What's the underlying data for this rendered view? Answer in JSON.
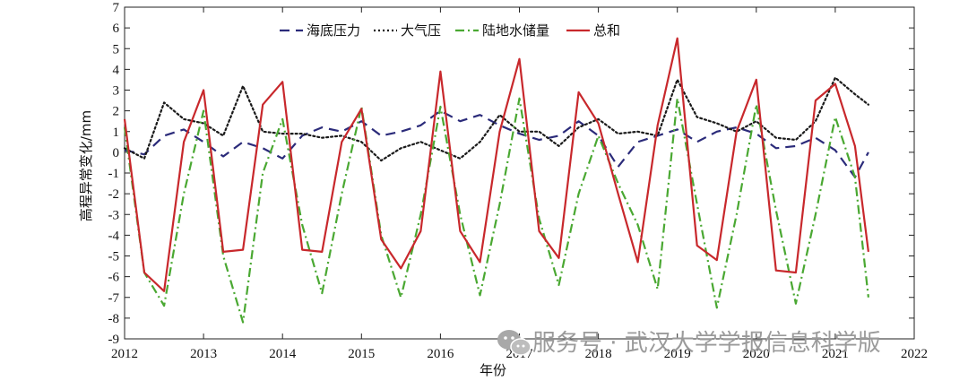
{
  "chart_data": {
    "type": "line",
    "title": "",
    "xlabel": "年份",
    "ylabel": "高程异常变化/mm",
    "xlim": [
      2012,
      2022
    ],
    "ylim": [
      -9,
      7
    ],
    "xticks": [
      "2012",
      "2013",
      "2014",
      "2015",
      "2016",
      "2017",
      "2018",
      "2019",
      "2020",
      "2021",
      "2022"
    ],
    "yticks": [
      "-9",
      "-8",
      "-7",
      "-6",
      "-5",
      "-4",
      "-3",
      "-2",
      "-1",
      "0",
      "1",
      "2",
      "3",
      "4",
      "5",
      "6",
      "7"
    ],
    "legend_position": "top-center",
    "series": [
      {
        "name": "海底压力",
        "color": "#2b2b7a",
        "style": "dashed",
        "x": [
          2012.0,
          2012.25,
          2012.5,
          2012.75,
          2013.0,
          2013.25,
          2013.5,
          2013.75,
          2014.0,
          2014.25,
          2014.5,
          2014.75,
          2015.0,
          2015.25,
          2015.5,
          2015.75,
          2016.0,
          2016.25,
          2016.5,
          2016.75,
          2017.0,
          2017.25,
          2017.5,
          2017.75,
          2018.0,
          2018.25,
          2018.5,
          2018.75,
          2019.0,
          2019.25,
          2019.5,
          2019.75,
          2020.0,
          2020.25,
          2020.5,
          2020.75,
          2021.0,
          2021.25,
          2021.42
        ],
        "values": [
          0.1,
          -0.1,
          0.8,
          1.1,
          0.5,
          -0.2,
          0.5,
          0.2,
          -0.3,
          0.8,
          1.2,
          1.0,
          1.5,
          0.8,
          1.0,
          1.3,
          2.0,
          1.5,
          1.8,
          1.3,
          0.9,
          0.6,
          0.8,
          1.5,
          0.8,
          -0.7,
          0.5,
          0.8,
          1.1,
          0.5,
          1.0,
          1.2,
          0.9,
          0.2,
          0.3,
          0.7,
          0.1,
          -1.2,
          0.0
        ]
      },
      {
        "name": "大气压",
        "color": "#1a1a1a",
        "style": "dotted",
        "x": [
          2012.0,
          2012.25,
          2012.5,
          2012.75,
          2013.0,
          2013.25,
          2013.5,
          2013.75,
          2014.0,
          2014.25,
          2014.5,
          2014.75,
          2015.0,
          2015.25,
          2015.5,
          2015.75,
          2016.0,
          2016.25,
          2016.5,
          2016.75,
          2017.0,
          2017.25,
          2017.5,
          2017.75,
          2018.0,
          2018.25,
          2018.5,
          2018.75,
          2019.0,
          2019.25,
          2019.5,
          2019.75,
          2020.0,
          2020.25,
          2020.5,
          2020.75,
          2021.0,
          2021.25,
          2021.42
        ],
        "values": [
          0.2,
          -0.3,
          2.4,
          1.6,
          1.4,
          0.8,
          3.2,
          1.0,
          0.9,
          0.9,
          0.7,
          0.8,
          0.5,
          -0.4,
          0.2,
          0.5,
          0.1,
          -0.3,
          0.5,
          1.8,
          1.0,
          1.0,
          0.3,
          1.2,
          1.6,
          0.9,
          1.0,
          0.8,
          3.5,
          1.7,
          1.4,
          1.0,
          1.5,
          0.7,
          0.6,
          1.5,
          3.6,
          2.8,
          2.3
        ]
      },
      {
        "name": "陆地水储量",
        "color": "#4aa832",
        "style": "dashdot",
        "x": [
          2012.0,
          2012.25,
          2012.5,
          2012.75,
          2013.0,
          2013.25,
          2013.5,
          2013.75,
          2014.0,
          2014.25,
          2014.5,
          2014.75,
          2015.0,
          2015.25,
          2015.5,
          2015.75,
          2016.0,
          2016.25,
          2016.5,
          2016.75,
          2017.0,
          2017.25,
          2017.5,
          2017.75,
          2018.0,
          2018.25,
          2018.5,
          2018.75,
          2019.0,
          2019.25,
          2019.5,
          2019.75,
          2020.0,
          2020.25,
          2020.5,
          2020.75,
          2021.0,
          2021.25,
          2021.42
        ],
        "values": [
          1.2,
          -5.8,
          -7.4,
          -2.0,
          2.0,
          -5.0,
          -8.2,
          -1.0,
          1.6,
          -3.5,
          -6.8,
          -2.0,
          2.2,
          -4.0,
          -7.0,
          -3.0,
          2.2,
          -3.0,
          -6.9,
          -2.5,
          2.6,
          -3.2,
          -6.4,
          -2.0,
          0.8,
          -1.5,
          -3.5,
          -6.6,
          2.6,
          -2.5,
          -7.5,
          -3.0,
          2.3,
          -2.8,
          -7.3,
          -3.0,
          1.7,
          -1.2,
          -7.0
        ]
      },
      {
        "name": "总和",
        "color": "#c8282c",
        "style": "solid",
        "x": [
          2012.0,
          2012.25,
          2012.5,
          2012.75,
          2013.0,
          2013.25,
          2013.5,
          2013.75,
          2014.0,
          2014.25,
          2014.5,
          2014.75,
          2015.0,
          2015.25,
          2015.5,
          2015.75,
          2016.0,
          2016.25,
          2016.5,
          2016.75,
          2017.0,
          2017.25,
          2017.5,
          2017.75,
          2018.0,
          2018.25,
          2018.5,
          2018.75,
          2019.0,
          2019.25,
          2019.5,
          2019.75,
          2020.0,
          2020.25,
          2020.5,
          2020.75,
          2021.0,
          2021.25,
          2021.42
        ],
        "values": [
          1.6,
          -5.8,
          -6.7,
          0.5,
          3.0,
          -4.8,
          -4.7,
          2.3,
          3.4,
          -4.7,
          -4.8,
          0.5,
          2.1,
          -4.2,
          -5.6,
          -3.8,
          3.9,
          -3.8,
          -5.3,
          1.0,
          4.5,
          -3.8,
          -5.1,
          2.9,
          1.4,
          -2.0,
          -5.3,
          1.3,
          5.5,
          -4.5,
          -5.2,
          1.0,
          3.5,
          -5.7,
          -5.8,
          2.5,
          3.3,
          0.3,
          -4.8
        ]
      }
    ]
  },
  "watermark": {
    "icon": "wechat-icon",
    "text": "服务号 · 武汉大学学报信息科学版"
  }
}
